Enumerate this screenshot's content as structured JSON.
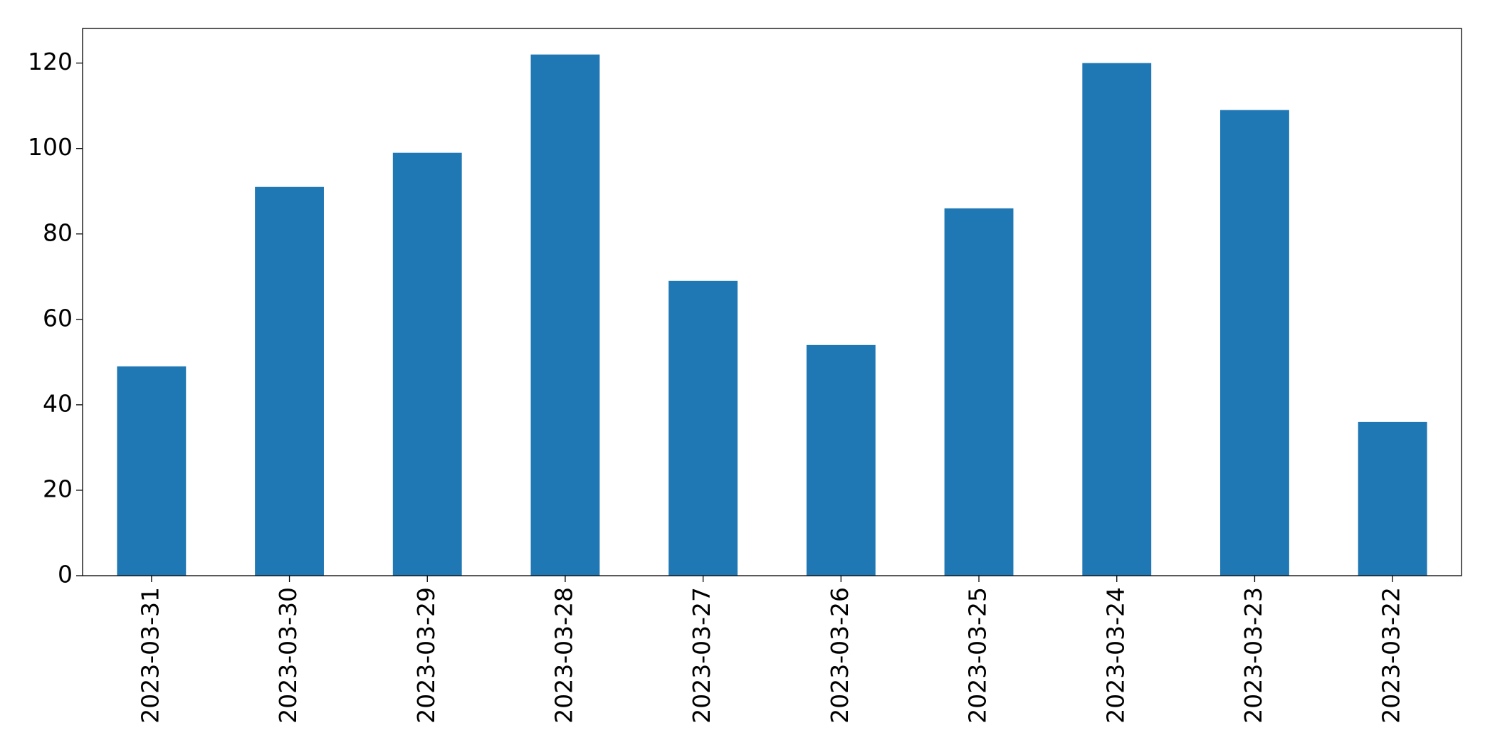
{
  "chart_data": {
    "type": "bar",
    "categories": [
      "2023-03-31",
      "2023-03-30",
      "2023-03-29",
      "2023-03-28",
      "2023-03-27",
      "2023-03-26",
      "2023-03-25",
      "2023-03-24",
      "2023-03-23",
      "2023-03-22"
    ],
    "values": [
      49,
      91,
      99,
      122,
      69,
      54,
      86,
      120,
      109,
      36
    ],
    "color": "#1f77b4",
    "ylim": [
      0,
      128.1
    ],
    "yticks": [
      0,
      20,
      40,
      60,
      80,
      100,
      120
    ],
    "grid": false
  }
}
